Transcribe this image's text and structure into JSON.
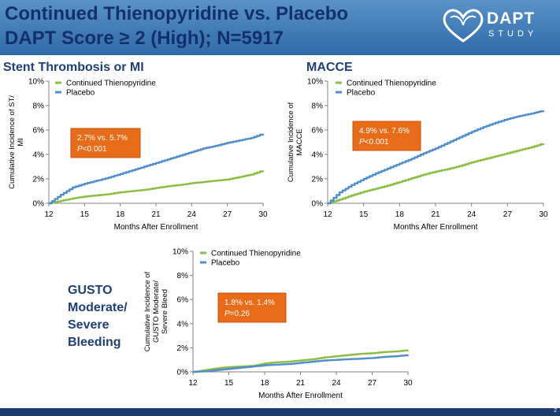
{
  "header": {
    "line1": "Continued Thienopyridine vs. Placebo",
    "line2": "DAPT Score ≥ 2 (High); N=5917"
  },
  "logo": {
    "word": "DAPT",
    "sub": "STUDY"
  },
  "colors": {
    "continued": "#8bbd43",
    "placebo": "#4f8dcb",
    "callout": "#e86c1a",
    "title": "#1f3f77"
  },
  "side_label": [
    "GUSTO",
    "Moderate/",
    "Severe",
    "Bleeding"
  ],
  "footer": {
    "page_number": "2"
  },
  "chart_data": [
    {
      "type": "line",
      "title": "Stent Thrombosis or MI",
      "ylabel": [
        "Cumulative Incidence of ST/",
        "MI"
      ],
      "xlabel": "Months After Enrollment",
      "xticks": [
        12,
        15,
        18,
        21,
        24,
        27,
        30
      ],
      "yticks": [
        "0%",
        "2%",
        "4%",
        "6%",
        "8%",
        "10%"
      ],
      "xlim": [
        12,
        30
      ],
      "ylim": [
        0,
        10
      ],
      "legend_position": "top-left",
      "callout": {
        "line1": "2.7% vs. 5.7%",
        "pvalue": "P<0.001"
      },
      "series": [
        {
          "name": "Continued Thienopyridine",
          "color": "#8bbd43",
          "x": [
            12,
            13,
            14,
            15,
            16,
            17,
            18,
            19,
            20,
            21,
            22,
            23,
            24,
            25,
            26,
            27,
            28,
            29,
            30
          ],
          "y": [
            0,
            0.2,
            0.4,
            0.55,
            0.65,
            0.75,
            0.9,
            1.0,
            1.1,
            1.25,
            1.4,
            1.5,
            1.65,
            1.75,
            1.85,
            1.95,
            2.15,
            2.35,
            2.7
          ]
        },
        {
          "name": "Placebo",
          "color": "#4f8dcb",
          "x": [
            12,
            13,
            14,
            15,
            16,
            17,
            18,
            19,
            20,
            21,
            22,
            23,
            24,
            25,
            26,
            27,
            28,
            29,
            30
          ],
          "y": [
            0,
            0.7,
            1.3,
            1.6,
            1.85,
            2.1,
            2.4,
            2.7,
            3.0,
            3.3,
            3.6,
            3.9,
            4.2,
            4.5,
            4.7,
            4.95,
            5.15,
            5.35,
            5.7
          ]
        }
      ]
    },
    {
      "type": "line",
      "title": "MACCE",
      "ylabel": [
        "Cumulative Incidence of",
        "MACCE"
      ],
      "xlabel": "Months After Enrollment",
      "xticks": [
        12,
        15,
        18,
        21,
        24,
        27,
        30
      ],
      "yticks": [
        "0%",
        "2%",
        "4%",
        "6%",
        "8%",
        "10%"
      ],
      "xlim": [
        12,
        30
      ],
      "ylim": [
        0,
        10
      ],
      "legend_position": "top-left",
      "callout": {
        "line1": "4.9% vs. 7.6%",
        "pvalue": "P<0.001"
      },
      "series": [
        {
          "name": "Continued Thienopyridine",
          "color": "#8bbd43",
          "x": [
            12,
            13,
            14,
            15,
            16,
            17,
            18,
            19,
            20,
            21,
            22,
            23,
            24,
            25,
            26,
            27,
            28,
            29,
            30
          ],
          "y": [
            0,
            0.3,
            0.65,
            0.95,
            1.2,
            1.45,
            1.75,
            2.05,
            2.35,
            2.6,
            2.8,
            3.05,
            3.35,
            3.6,
            3.85,
            4.1,
            4.35,
            4.6,
            4.9
          ]
        },
        {
          "name": "Placebo",
          "color": "#4f8dcb",
          "x": [
            12,
            13,
            14,
            15,
            16,
            17,
            18,
            19,
            20,
            21,
            22,
            23,
            24,
            25,
            26,
            27,
            28,
            29,
            30
          ],
          "y": [
            0,
            0.9,
            1.5,
            2.0,
            2.45,
            2.85,
            3.25,
            3.65,
            4.1,
            4.5,
            4.95,
            5.4,
            5.85,
            6.25,
            6.6,
            6.9,
            7.15,
            7.35,
            7.6
          ]
        }
      ]
    },
    {
      "type": "line",
      "title": "",
      "ylabel": [
        "Cumulative Incidence of",
        "GUSTO Moderate/",
        "Severe Bleed"
      ],
      "xlabel": "Months After Enrollment",
      "xticks": [
        12,
        15,
        18,
        21,
        24,
        27,
        30
      ],
      "yticks": [
        "0%",
        "2%",
        "4%",
        "6%",
        "8%",
        "10%"
      ],
      "xlim": [
        12,
        30
      ],
      "ylim": [
        0,
        10
      ],
      "legend_position": "top-left",
      "callout": {
        "line1": "1.8% vs. 1.4%",
        "pvalue": "P=0.26"
      },
      "series": [
        {
          "name": "Continued Thienopyridine",
          "color": "#8bbd43",
          "x": [
            12,
            13,
            14,
            15,
            16,
            17,
            18,
            19,
            20,
            21,
            22,
            23,
            24,
            25,
            26,
            27,
            28,
            29,
            30
          ],
          "y": [
            0,
            0.15,
            0.3,
            0.4,
            0.45,
            0.5,
            0.7,
            0.8,
            0.85,
            0.95,
            1.05,
            1.2,
            1.3,
            1.4,
            1.5,
            1.55,
            1.65,
            1.7,
            1.8
          ]
        },
        {
          "name": "Placebo",
          "color": "#4f8dcb",
          "x": [
            12,
            13,
            14,
            15,
            16,
            17,
            18,
            19,
            20,
            21,
            22,
            23,
            24,
            25,
            26,
            27,
            28,
            29,
            30
          ],
          "y": [
            0,
            0.05,
            0.15,
            0.25,
            0.35,
            0.45,
            0.55,
            0.6,
            0.65,
            0.75,
            0.85,
            0.95,
            1.0,
            1.05,
            1.1,
            1.15,
            1.25,
            1.3,
            1.4
          ]
        }
      ]
    }
  ]
}
